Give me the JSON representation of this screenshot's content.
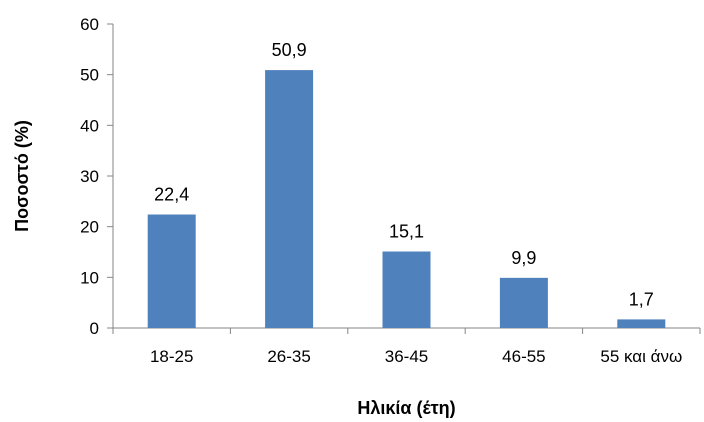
{
  "chart_data": {
    "type": "bar",
    "categories": [
      "18-25",
      "26-35",
      "36-45",
      "46-55",
      "55 και άνω"
    ],
    "values": [
      22.4,
      50.9,
      15.1,
      9.9,
      1.7
    ],
    "data_labels": [
      "22,4",
      "50,9",
      "15,1",
      "9,9",
      "1,7"
    ],
    "title": "",
    "xlabel": "Ηλικία (έτη)",
    "ylabel": "Ποσοστό (%)",
    "ylim": [
      0,
      60
    ],
    "yticks": [
      0,
      10,
      20,
      30,
      40,
      50,
      60
    ],
    "grid": false,
    "legend": "none",
    "bar_color": "#4F81BD",
    "axis_color": "#868686"
  }
}
